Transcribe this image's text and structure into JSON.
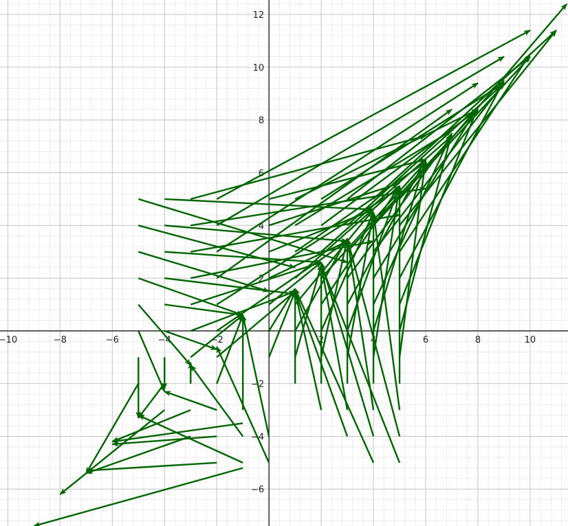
{
  "chart_data": {
    "type": "vector_field_plot",
    "title": "",
    "xlabel": "",
    "ylabel": "",
    "xlim": [
      -10.3,
      11.45
    ],
    "ylim": [
      -7.4,
      12.55
    ],
    "x_ticks": [
      -10,
      -8,
      -6,
      -4,
      -2,
      2,
      4,
      6,
      8,
      10
    ],
    "y_ticks": [
      -6,
      -4,
      -2,
      2,
      4,
      6,
      8,
      10,
      12
    ],
    "x_tick_labels": [
      "−10",
      "−8",
      "−6",
      "−4",
      "−2",
      "2",
      "4",
      "6",
      "8",
      "10"
    ],
    "y_tick_labels": [
      "−6",
      "−4",
      "−2",
      "2",
      "4",
      "6",
      "8",
      "10",
      "12"
    ],
    "grid": true,
    "minor_grid_step": 0.4,
    "major_grid_step": 2,
    "arrow_color": "#006400",
    "arrows": [
      [
        -5,
        5,
        3,
        2.6
      ],
      [
        -4,
        5,
        4,
        4.6
      ],
      [
        -3,
        5,
        6,
        7.4
      ],
      [
        -2,
        5,
        10,
        11.4
      ],
      [
        -5,
        4,
        1,
        2.4
      ],
      [
        -4,
        4,
        3,
        3.4
      ],
      [
        -3,
        4,
        6,
        5.4
      ],
      [
        -2,
        4,
        9,
        10.4
      ],
      [
        -5,
        3,
        0,
        1.5
      ],
      [
        -4,
        3,
        2,
        2.6
      ],
      [
        -3,
        3,
        5,
        4.4
      ],
      [
        -2,
        3,
        8,
        9.4
      ],
      [
        -5,
        2,
        -1,
        0.6
      ],
      [
        -4,
        2,
        1,
        1.4
      ],
      [
        -3,
        2,
        4,
        3.4
      ],
      [
        -2,
        2,
        7,
        8.4
      ],
      [
        -5,
        1,
        -3,
        -1.3
      ],
      [
        -4,
        1,
        -1,
        0.6
      ],
      [
        -3,
        1,
        2,
        2.6
      ],
      [
        -2,
        1,
        5,
        5.4
      ],
      [
        -5,
        0,
        -4,
        -2.3
      ],
      [
        -4,
        0,
        -2,
        -0.7
      ],
      [
        -3,
        0,
        1,
        1.5
      ],
      [
        -2,
        0,
        3,
        3.4
      ],
      [
        -5,
        -1,
        -5,
        -3.3
      ],
      [
        -4,
        -1,
        -4,
        -2.2
      ],
      [
        -3,
        -1,
        -1,
        0.6
      ],
      [
        -2,
        -1,
        1,
        1.5
      ],
      [
        -5,
        -2,
        -7,
        -5.4
      ],
      [
        -4,
        -2,
        -5,
        -3.3
      ],
      [
        -3,
        -2,
        -3,
        -1.2
      ],
      [
        -2,
        -2,
        -1,
        0.6
      ],
      [
        -4,
        -3,
        -8,
        -6.2
      ],
      [
        -3,
        -3,
        -6,
        -4.2
      ],
      [
        -2,
        -3,
        -4,
        -2.3
      ],
      [
        -1,
        -3,
        -1,
        0.6
      ],
      [
        -3,
        -4,
        -7,
        -5.4
      ],
      [
        -2,
        -4,
        -6,
        -4.3
      ],
      [
        -1,
        -4,
        -3,
        -1.3
      ],
      [
        0,
        -4,
        -1,
        0.6
      ],
      [
        -2,
        -5,
        -7,
        -5.3
      ],
      [
        -1,
        -5,
        -5,
        -3.2
      ],
      [
        0,
        -5,
        -2,
        -0.6
      ],
      [
        -1,
        -3.5,
        -6,
        -4.2
      ],
      [
        -1,
        -5.2,
        -9,
        -7.4
      ],
      [
        0,
        -1,
        1,
        1.5
      ],
      [
        0,
        0,
        1,
        1.6
      ],
      [
        0,
        1,
        2,
        2.6
      ],
      [
        0,
        2,
        3,
        3.4
      ],
      [
        0,
        3,
        4,
        4.6
      ],
      [
        0,
        4,
        5,
        5.6
      ],
      [
        0,
        5,
        6,
        6.5
      ],
      [
        1,
        -2,
        1,
        1.5
      ],
      [
        1,
        -1,
        2,
        2.5
      ],
      [
        1,
        0,
        3,
        3.5
      ],
      [
        1,
        1,
        4,
        4.6
      ],
      [
        1,
        2,
        5,
        5.5
      ],
      [
        1,
        3,
        6,
        6.4
      ],
      [
        1,
        4,
        7,
        7.6
      ],
      [
        1,
        5,
        8,
        8.4
      ],
      [
        2,
        -3,
        1,
        1.5
      ],
      [
        2,
        -2,
        2,
        2.5
      ],
      [
        2,
        -1,
        3,
        3.5
      ],
      [
        2,
        0,
        4,
        4.5
      ],
      [
        2,
        1,
        5,
        5.5
      ],
      [
        2,
        2,
        6,
        6.4
      ],
      [
        2,
        3,
        7,
        7.4
      ],
      [
        2,
        4,
        8,
        8.4
      ],
      [
        2,
        5,
        9,
        9.4
      ],
      [
        3,
        -4,
        1,
        1.5
      ],
      [
        3,
        -3,
        2,
        2.5
      ],
      [
        3,
        -2,
        3,
        3.5
      ],
      [
        3,
        -1,
        4,
        4.5
      ],
      [
        3,
        0,
        5,
        5.5
      ],
      [
        3,
        1,
        6,
        6.5
      ],
      [
        3,
        2,
        7,
        7.4
      ],
      [
        3,
        3,
        8,
        8.4
      ],
      [
        3,
        4,
        9,
        9.4
      ],
      [
        3,
        5,
        10,
        10.4
      ],
      [
        4,
        -5,
        1,
        1.6
      ],
      [
        4,
        -4,
        2,
        2.6
      ],
      [
        4,
        -3,
        3,
        3.5
      ],
      [
        4,
        -2,
        4,
        4.5
      ],
      [
        4,
        -1,
        5,
        5.5
      ],
      [
        4,
        0,
        6,
        6.5
      ],
      [
        4,
        1,
        7,
        7.5
      ],
      [
        4,
        2,
        8,
        8.5
      ],
      [
        4,
        3,
        9,
        9.4
      ],
      [
        4,
        4,
        10,
        10.4
      ],
      [
        4,
        5,
        11,
        11.4
      ],
      [
        5,
        -5,
        2,
        2.5
      ],
      [
        5,
        -4,
        3,
        3.5
      ],
      [
        5,
        -3,
        4,
        4.5
      ],
      [
        5,
        -2,
        5,
        5.5
      ],
      [
        5,
        -1,
        6,
        6.5
      ],
      [
        5,
        0,
        7,
        7.5
      ],
      [
        5,
        1,
        8,
        8.5
      ],
      [
        5,
        2,
        9,
        9.5
      ],
      [
        5,
        3,
        10,
        10.5
      ],
      [
        5,
        4,
        11,
        11.4
      ],
      [
        5,
        5,
        11.4,
        12.4
      ]
    ],
    "arrow_format": "[x_tail, y_tail, x_head, y_head]"
  }
}
